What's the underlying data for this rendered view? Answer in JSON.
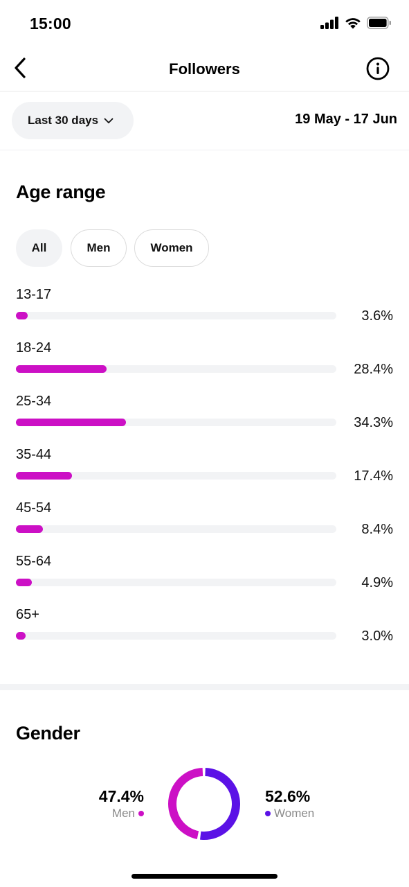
{
  "status_bar": {
    "time": "15:00",
    "icons": [
      "signal-icon",
      "wifi-icon",
      "battery-icon"
    ]
  },
  "nav": {
    "title": "Followers",
    "back_icon": "chevron-left-icon",
    "info_icon": "info-icon"
  },
  "filter": {
    "range_label": "Last 30 days",
    "date_range": "19 May - 17 Jun"
  },
  "age": {
    "title": "Age range",
    "segments": [
      "All",
      "Men",
      "Women"
    ],
    "selected_segment": "All",
    "rows": [
      {
        "label": "13-17",
        "value": "3.6%",
        "percent": 3.6
      },
      {
        "label": "18-24",
        "value": "28.4%",
        "percent": 28.4
      },
      {
        "label": "25-34",
        "value": "34.3%",
        "percent": 34.3
      },
      {
        "label": "35-44",
        "value": "17.4%",
        "percent": 17.4
      },
      {
        "label": "45-54",
        "value": "8.4%",
        "percent": 8.4
      },
      {
        "label": "55-64",
        "value": "4.9%",
        "percent": 4.9
      },
      {
        "label": "65+",
        "value": "3.0%",
        "percent": 3.0
      }
    ]
  },
  "gender": {
    "title": "Gender",
    "men": {
      "value": "47.4%",
      "label": "Men",
      "percent": 47.4
    },
    "women": {
      "value": "52.6%",
      "label": "Women",
      "percent": 52.6
    }
  },
  "colors": {
    "accent": "#cc10c5",
    "women": "#5b12e6",
    "track": "#f2f3f5"
  }
}
